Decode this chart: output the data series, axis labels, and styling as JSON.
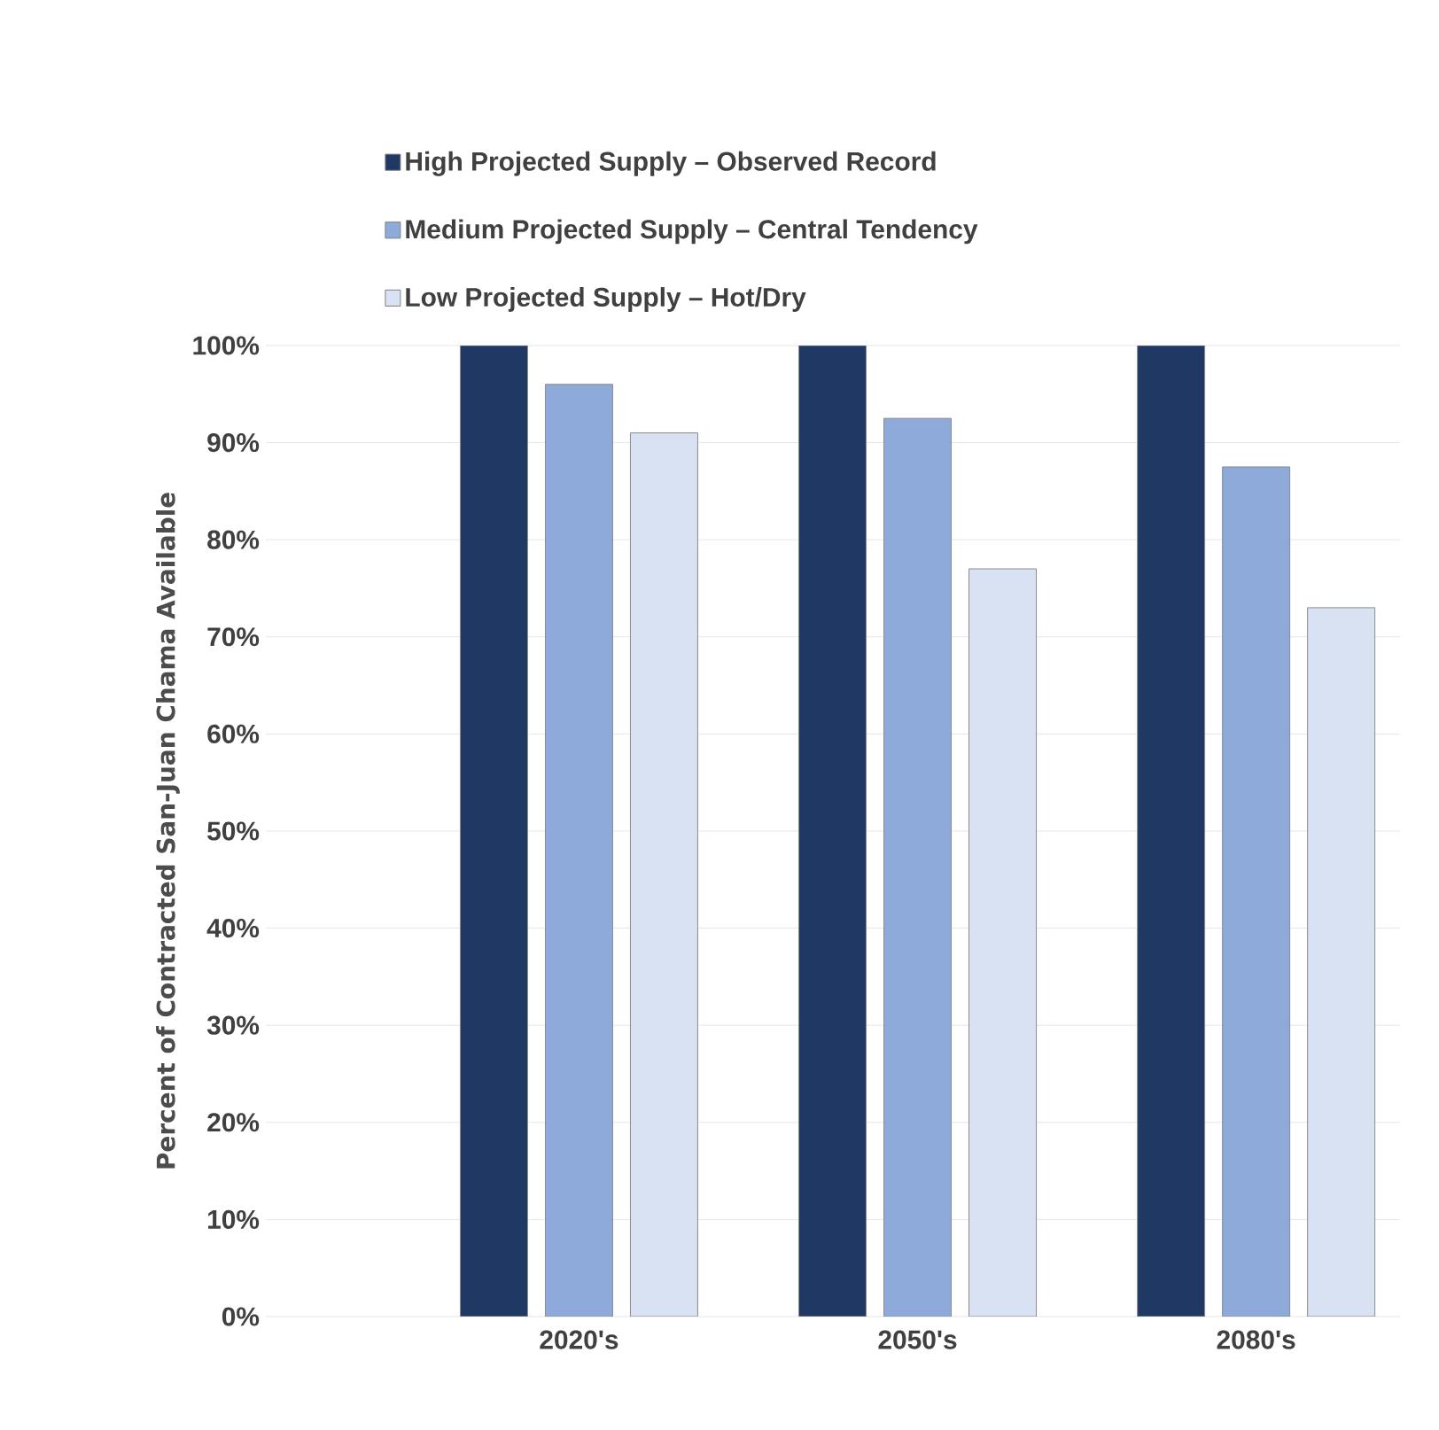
{
  "chart_data": {
    "type": "bar",
    "ylabel": "Percent of Contracted San-Juan Chama Available",
    "categories": [
      "2020's",
      "2050's",
      "2080's"
    ],
    "series": [
      {
        "name": "High Projected Supply – Observed Record",
        "color": "#1f3864",
        "values": [
          100,
          100,
          100
        ]
      },
      {
        "name": "Medium Projected Supply – Central Tendency",
        "color": "#8eaadb",
        "values": [
          96,
          92.5,
          87.5
        ]
      },
      {
        "name": "Low Projected Supply – Hot/Dry",
        "color": "#d9e2f3",
        "values": [
          91,
          77,
          73
        ]
      }
    ],
    "ylim": [
      0,
      100
    ],
    "yticks": [
      {
        "value": 0,
        "label": "0%"
      },
      {
        "value": 10,
        "label": "10%"
      },
      {
        "value": 20,
        "label": "20%"
      },
      {
        "value": 30,
        "label": "30%"
      },
      {
        "value": 40,
        "label": "40%"
      },
      {
        "value": 50,
        "label": "50%"
      },
      {
        "value": 60,
        "label": "60%"
      },
      {
        "value": 70,
        "label": "70%"
      },
      {
        "value": 80,
        "label": "80%"
      },
      {
        "value": 90,
        "label": "90%"
      },
      {
        "value": 100,
        "label": "100%"
      }
    ],
    "grid": "y",
    "legend": "top"
  }
}
